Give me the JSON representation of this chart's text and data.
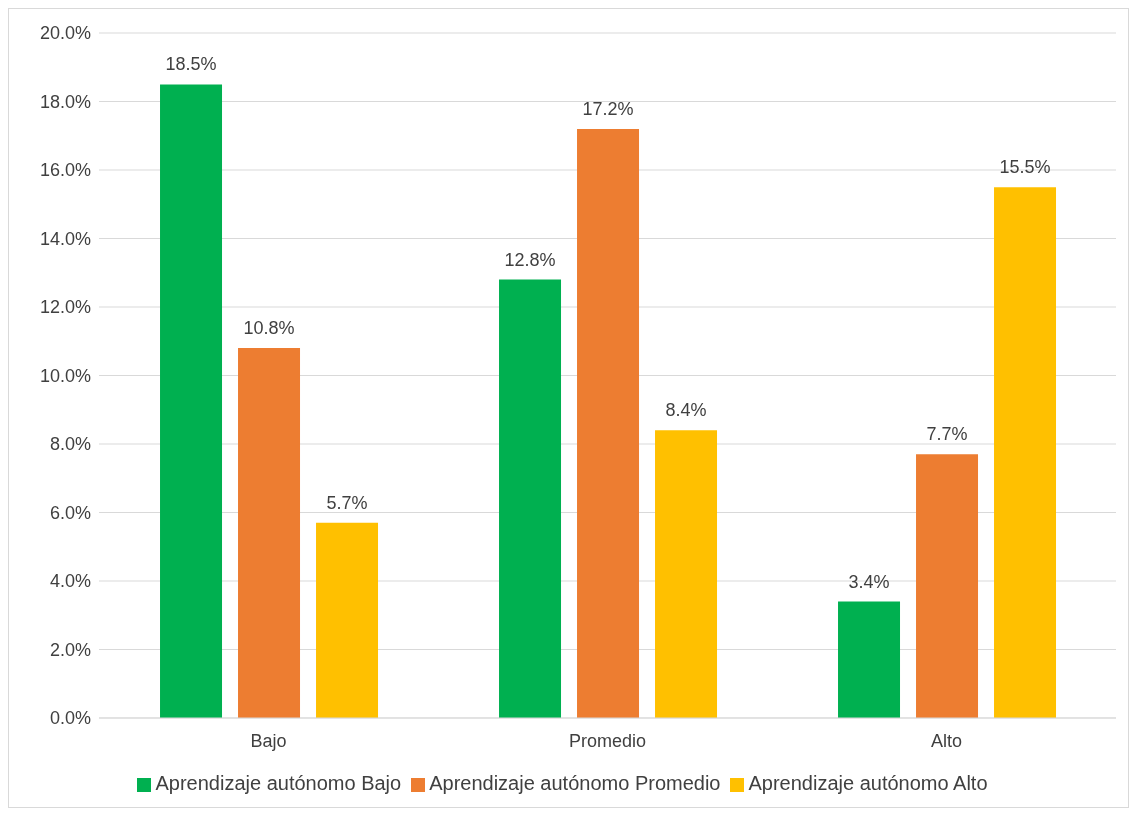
{
  "chart_data": {
    "type": "bar",
    "categories": [
      "Bajo",
      "Promedio",
      "Alto"
    ],
    "series": [
      {
        "name": "Aprendizaje autónomo Bajo",
        "color": "#00b050",
        "values": [
          18.5,
          12.8,
          3.4
        ],
        "value_labels": [
          "18.5%",
          "12.8%",
          "3.4%"
        ]
      },
      {
        "name": "Aprendizaje autónomo Promedio",
        "color": "#ed7d31",
        "values": [
          10.8,
          17.2,
          7.7
        ],
        "value_labels": [
          "10.8%",
          "17.2%",
          "7.7%"
        ]
      },
      {
        "name": "Aprendizaje autónomo Alto",
        "color": "#ffc000",
        "values": [
          5.7,
          8.4,
          15.5
        ],
        "value_labels": [
          "5.7%",
          "8.4%",
          "15.5%"
        ]
      }
    ],
    "ylim": [
      0,
      20
    ],
    "yticks": [
      {
        "value": 0,
        "label": "0.0%"
      },
      {
        "value": 2,
        "label": "2.0%"
      },
      {
        "value": 4,
        "label": "4.0%"
      },
      {
        "value": 6,
        "label": "6.0%"
      },
      {
        "value": 8,
        "label": "8.0%"
      },
      {
        "value": 10,
        "label": "10.0%"
      },
      {
        "value": 12,
        "label": "12.0%"
      },
      {
        "value": 14,
        "label": "14.0%"
      },
      {
        "value": 16,
        "label": "16.0%"
      },
      {
        "value": 18,
        "label": "18.0%"
      },
      {
        "value": 20,
        "label": "20.0%"
      }
    ],
    "grid": "y",
    "legend": "bottom"
  }
}
